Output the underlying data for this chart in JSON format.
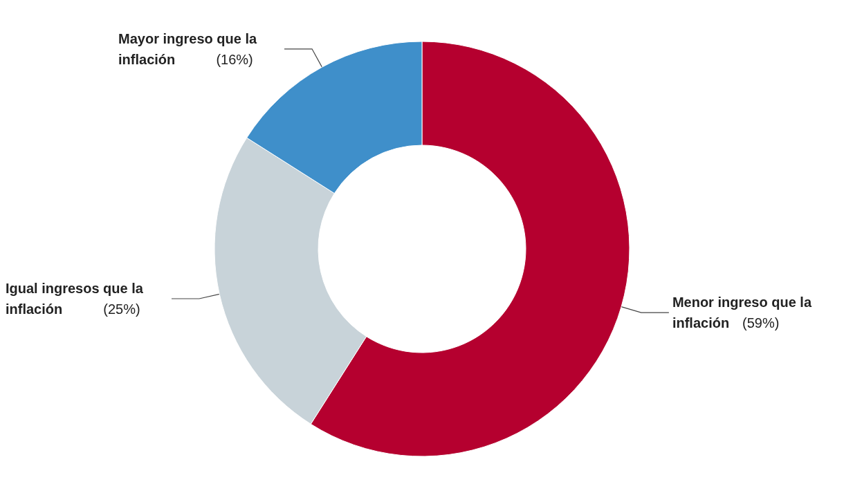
{
  "chart_data": {
    "type": "donut",
    "categories": [
      "Menor ingreso que la inflación",
      "Igual ingresos que la inflación",
      "Mayor ingreso que la inflación"
    ],
    "values": [
      59,
      25,
      16
    ],
    "value_labels": [
      "(59%)",
      "(25%)",
      "(16%)"
    ],
    "colors": [
      "#b5002f",
      "#c8d3d9",
      "#3f8fca"
    ],
    "legend": false
  }
}
